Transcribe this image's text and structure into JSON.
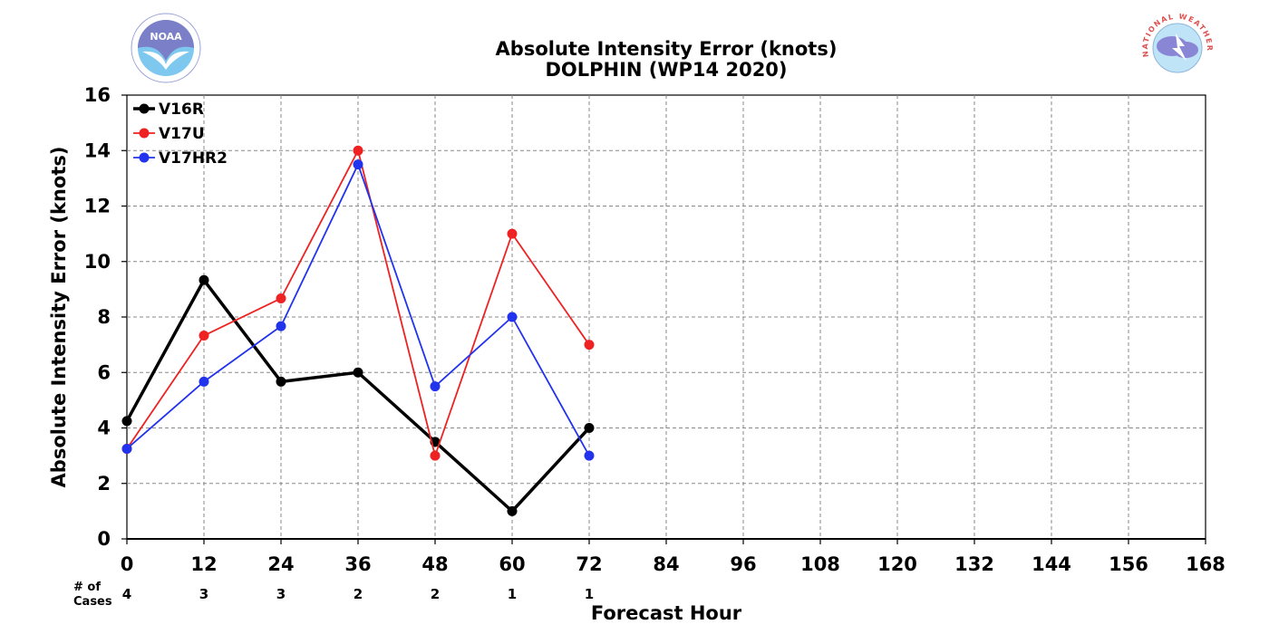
{
  "logos": {
    "noaa": {
      "text": "NOAA",
      "ring_text": "NATIONAL OCEANIC AND ATMOSPHERIC ADMINISTRATION · U.S. DEPARTMENT OF COMMERCE"
    },
    "nws": {
      "ring_text": "NATIONAL WEATHER SERVICE"
    }
  },
  "chart_data": {
    "type": "line",
    "title": "Absolute Intensity Error (knots)",
    "subtitle": "DOLPHIN (WP14 2020)",
    "xlabel": "Forecast Hour",
    "ylabel": "Absolute Intensity Error (knots)",
    "xlim": [
      0,
      168
    ],
    "ylim": [
      0,
      16
    ],
    "x_ticks": [
      0,
      12,
      24,
      36,
      48,
      60,
      72,
      84,
      96,
      108,
      120,
      132,
      144,
      156,
      168
    ],
    "y_ticks": [
      0,
      2,
      4,
      6,
      8,
      10,
      12,
      14,
      16
    ],
    "grid": true,
    "legend_position": "top-left",
    "x": [
      0,
      12,
      24,
      36,
      48,
      60,
      72
    ],
    "series": [
      {
        "name": "V16R",
        "color": "#000000",
        "line_width": 3.5,
        "values": [
          4.25,
          9.33,
          5.67,
          6.0,
          3.5,
          1.0,
          4.0
        ]
      },
      {
        "name": "V17U",
        "color": "#ee2222",
        "line_width": 1.8,
        "values": [
          3.25,
          7.33,
          8.67,
          14.0,
          3.0,
          11.0,
          7.0
        ]
      },
      {
        "name": "V17HR2",
        "color": "#2233ee",
        "line_width": 1.8,
        "values": [
          3.25,
          5.67,
          7.67,
          13.5,
          5.5,
          8.0,
          3.0
        ]
      }
    ],
    "cases": {
      "label_line1": "# of",
      "label_line2": "Cases",
      "x": [
        0,
        12,
        24,
        36,
        48,
        60,
        72
      ],
      "counts": [
        4,
        3,
        3,
        2,
        2,
        1,
        1
      ]
    }
  }
}
